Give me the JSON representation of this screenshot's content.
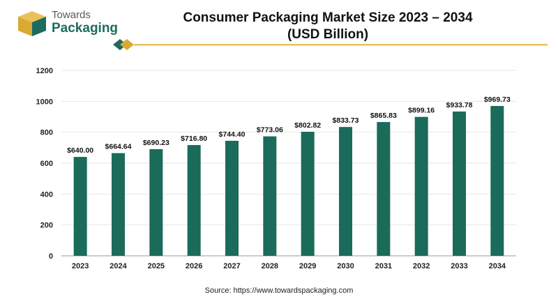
{
  "logo": {
    "line1": "Towards",
    "line2": "Packaging",
    "colors": {
      "gold": "#d9a933",
      "green": "#1d6b5f"
    }
  },
  "chart_data": {
    "type": "bar",
    "title": "Consumer Packaging Market Size 2023 – 2034",
    "subtitle": "(USD Billion)",
    "xlabel": "",
    "ylabel": "",
    "categories": [
      "2023",
      "2024",
      "2025",
      "2026",
      "2027",
      "2028",
      "2029",
      "2030",
      "2031",
      "2032",
      "2033",
      "2034"
    ],
    "values": [
      640.0,
      664.64,
      690.23,
      716.8,
      744.4,
      773.06,
      802.82,
      833.73,
      865.83,
      899.16,
      933.78,
      969.73
    ],
    "data_labels": [
      "$640.00",
      "$664.64",
      "$690.23",
      "$716.80",
      "$744.40",
      "$773.06",
      "$802.82",
      "$833.73",
      "$865.83",
      "$899.16",
      "$933.78",
      "$969.73"
    ],
    "yticks": [
      0,
      200,
      400,
      600,
      800,
      1000,
      1200
    ],
    "ylim": [
      0,
      1200
    ],
    "grid": true,
    "legend": "none",
    "bar_color": "#1a6b5a"
  },
  "source": "Source: https://www.towardspackaging.com"
}
